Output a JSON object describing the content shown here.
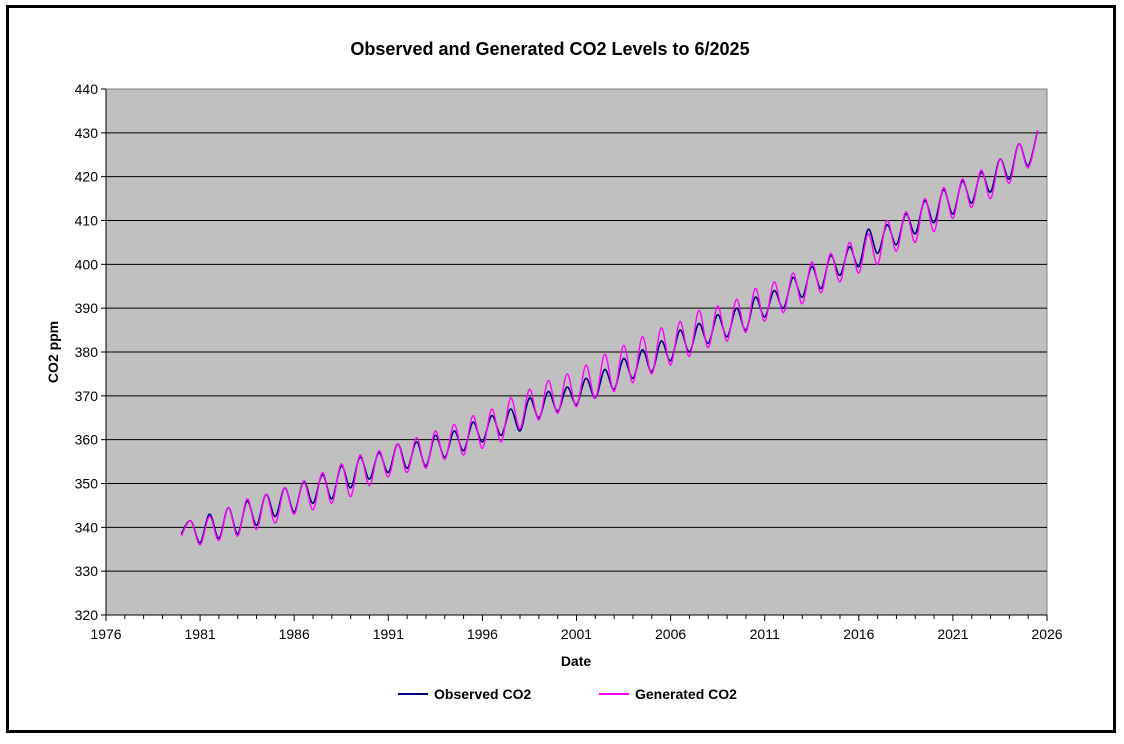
{
  "chart_data": {
    "type": "line",
    "title": "Observed and Generated CO2 Levels to 6/2025",
    "xlabel": "Date",
    "ylabel": "CO2 ppm",
    "xlim": [
      1976,
      2026
    ],
    "ylim": [
      320,
      440
    ],
    "x_ticks": [
      "1976",
      "1981",
      "1986",
      "1991",
      "1996",
      "2001",
      "2006",
      "2011",
      "2016",
      "2021",
      "2026"
    ],
    "y_ticks": [
      "320",
      "330",
      "340",
      "350",
      "360",
      "370",
      "380",
      "390",
      "400",
      "410",
      "420",
      "430",
      "440"
    ],
    "grid": "horizontal",
    "legend_position": "bottom",
    "colors": {
      "plot_background": "#c0c0c0",
      "observed": "#000080",
      "generated": "#ff00ff"
    },
    "series": [
      {
        "name": "Observed CO2",
        "color": "#000080",
        "x_start": 1980.0,
        "x_step": 0.5,
        "values": [
          338.5,
          341.5,
          336.5,
          343.0,
          337.5,
          344.5,
          338.5,
          346.0,
          340.5,
          347.5,
          342.5,
          349.0,
          343.5,
          350.5,
          345.5,
          352.0,
          346.5,
          354.0,
          349.0,
          356.0,
          351.0,
          357.0,
          352.5,
          359.0,
          353.5,
          359.5,
          354.0,
          361.0,
          356.0,
          362.0,
          357.5,
          364.0,
          359.5,
          365.5,
          361.0,
          367.0,
          362.0,
          369.5,
          365.0,
          371.0,
          366.5,
          372.0,
          368.0,
          374.0,
          369.5,
          376.0,
          371.5,
          378.5,
          374.0,
          380.5,
          375.5,
          382.5,
          378.0,
          385.0,
          380.0,
          386.5,
          382.0,
          388.5,
          383.5,
          390.0,
          385.0,
          392.5,
          388.0,
          394.0,
          390.0,
          397.0,
          392.5,
          399.5,
          394.5,
          402.0,
          397.5,
          404.0,
          399.5,
          408.0,
          402.5,
          409.0,
          404.5,
          411.5,
          407.0,
          414.5,
          409.5,
          417.0,
          411.5,
          419.0,
          414.0,
          421.0,
          416.5,
          424.0,
          419.5,
          427.5,
          422.5,
          430.5
        ]
      },
      {
        "name": "Generated CO2",
        "color": "#ff00ff",
        "x_start": 1980.0,
        "x_step": 0.5,
        "values": [
          338.0,
          341.5,
          336.0,
          342.5,
          337.0,
          344.5,
          338.0,
          346.5,
          339.5,
          347.5,
          341.0,
          349.0,
          343.0,
          350.5,
          344.0,
          352.5,
          345.5,
          354.5,
          347.0,
          356.5,
          349.5,
          357.5,
          351.5,
          359.0,
          352.5,
          360.5,
          353.5,
          362.0,
          355.5,
          363.5,
          356.5,
          365.5,
          358.0,
          367.0,
          359.5,
          369.5,
          362.5,
          371.5,
          364.5,
          373.5,
          366.0,
          375.0,
          367.5,
          377.0,
          369.5,
          379.5,
          371.0,
          381.5,
          373.0,
          383.5,
          375.0,
          385.5,
          377.0,
          387.0,
          379.0,
          389.5,
          381.0,
          390.5,
          382.5,
          392.0,
          384.5,
          394.5,
          387.0,
          396.0,
          389.0,
          398.0,
          391.0,
          400.5,
          393.5,
          402.5,
          396.0,
          405.0,
          398.0,
          407.0,
          400.0,
          410.0,
          403.0,
          412.0,
          405.0,
          415.0,
          407.5,
          417.5,
          410.5,
          419.5,
          413.0,
          421.5,
          415.0,
          424.0,
          418.5,
          427.5,
          422.0,
          430.5
        ]
      }
    ]
  }
}
